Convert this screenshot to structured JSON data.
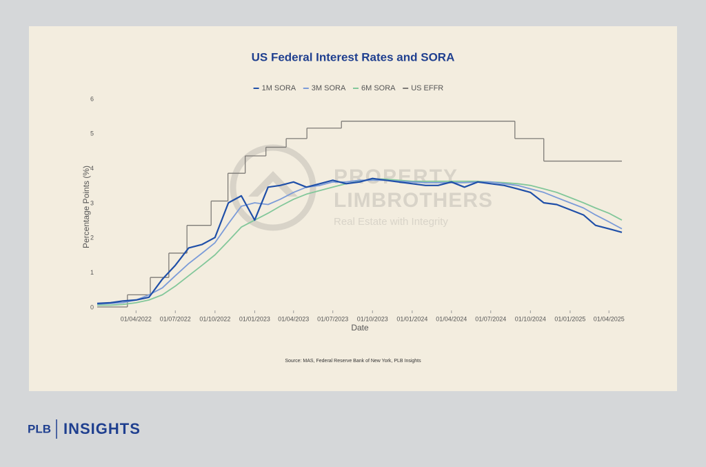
{
  "chart_data": {
    "type": "line",
    "title": "US Federal Interest Rates and SORA",
    "xlabel": "Date",
    "ylabel": "Percentage Points (%)",
    "source": "Source: MAS, Federal Reserve Bank of New York, PLB Insights",
    "x": [
      "01/01/2022",
      "01/02/2022",
      "01/03/2022",
      "01/04/2022",
      "01/05/2022",
      "01/06/2022",
      "01/07/2022",
      "01/08/2022",
      "01/09/2022",
      "01/10/2022",
      "01/11/2022",
      "01/12/2022",
      "01/01/2023",
      "01/02/2023",
      "01/03/2023",
      "01/04/2023",
      "01/05/2023",
      "01/06/2023",
      "01/07/2023",
      "01/08/2023",
      "01/09/2023",
      "01/10/2023",
      "01/11/2023",
      "01/12/2023",
      "01/01/2024",
      "01/02/2024",
      "01/03/2024",
      "01/04/2024",
      "01/05/2024",
      "01/06/2024",
      "01/07/2024",
      "01/08/2024",
      "01/09/2024",
      "01/10/2024",
      "01/11/2024",
      "01/12/2024",
      "01/01/2025",
      "01/02/2025",
      "01/03/2025",
      "01/04/2025",
      "01/05/2025"
    ],
    "series": [
      {
        "name": "1M SORA",
        "color": "#1f4fa8",
        "values": [
          0.2,
          0.22,
          0.27,
          0.3,
          0.38,
          0.9,
          1.3,
          1.8,
          1.9,
          2.1,
          3.1,
          3.3,
          2.6,
          3.55,
          3.6,
          3.7,
          3.55,
          3.65,
          3.75,
          3.65,
          3.7,
          3.8,
          3.75,
          3.7,
          3.65,
          3.6,
          3.6,
          3.7,
          3.55,
          3.7,
          3.65,
          3.6,
          3.5,
          3.4,
          3.1,
          3.05,
          2.9,
          2.75,
          2.45,
          2.35,
          2.25
        ]
      },
      {
        "name": "3M SORA",
        "color": "#7b9bd8",
        "values": [
          0.18,
          0.2,
          0.22,
          0.3,
          0.45,
          0.65,
          1.0,
          1.35,
          1.65,
          1.95,
          2.5,
          3.0,
          3.1,
          3.05,
          3.2,
          3.4,
          3.55,
          3.6,
          3.7,
          3.7,
          3.75,
          3.75,
          3.75,
          3.72,
          3.7,
          3.68,
          3.68,
          3.68,
          3.68,
          3.7,
          3.7,
          3.65,
          3.6,
          3.5,
          3.4,
          3.25,
          3.1,
          2.95,
          2.75,
          2.55,
          2.35
        ]
      },
      {
        "name": "6M SORA",
        "color": "#82c79a",
        "values": [
          0.15,
          0.15,
          0.17,
          0.22,
          0.3,
          0.45,
          0.7,
          1.0,
          1.3,
          1.6,
          2.0,
          2.4,
          2.6,
          2.8,
          3.0,
          3.2,
          3.35,
          3.45,
          3.55,
          3.65,
          3.72,
          3.78,
          3.78,
          3.75,
          3.72,
          3.72,
          3.72,
          3.72,
          3.72,
          3.72,
          3.7,
          3.68,
          3.65,
          3.6,
          3.5,
          3.4,
          3.25,
          3.1,
          2.95,
          2.8,
          2.6
        ]
      },
      {
        "name": "US EFFR",
        "color": "#7d7a76",
        "step": "after",
        "x": [
          "01/01/2022",
          "12/03/2022",
          "04/05/2022",
          "16/06/2022",
          "28/07/2022",
          "22/09/2022",
          "31/10/2022",
          "10/12/2022",
          "27/01/2023",
          "15/03/2023",
          "02/05/2023",
          "21/07/2023",
          "26/08/2024",
          "01/11/2024",
          "01/05/2025"
        ],
        "values": [
          0.1,
          0.45,
          0.95,
          1.65,
          2.45,
          3.15,
          3.95,
          4.45,
          4.7,
          4.95,
          5.25,
          5.45,
          4.95,
          4.3,
          4.3
        ]
      }
    ],
    "xlim": [
      "01/01/2022",
      "01/05/2025"
    ],
    "xticks": [
      "01/04/2022",
      "01/07/2022",
      "01/10/2022",
      "01/01/2023",
      "01/04/2023",
      "01/07/2023",
      "01/10/2023",
      "01/01/2024",
      "01/04/2024",
      "01/07/2024",
      "01/10/2024",
      "01/01/2025",
      "01/04/2025"
    ],
    "ylim": [
      0,
      6
    ],
    "yticks": [
      0,
      1,
      2,
      3,
      4,
      5,
      6
    ],
    "grid": false,
    "legend": "top"
  },
  "watermark": {
    "line1": "PROPERTY",
    "line2": "LIMBROTHERS",
    "tagline": "Real Estate with Integrity"
  },
  "brand": {
    "left": "PLB",
    "right": "INSIGHTS"
  }
}
